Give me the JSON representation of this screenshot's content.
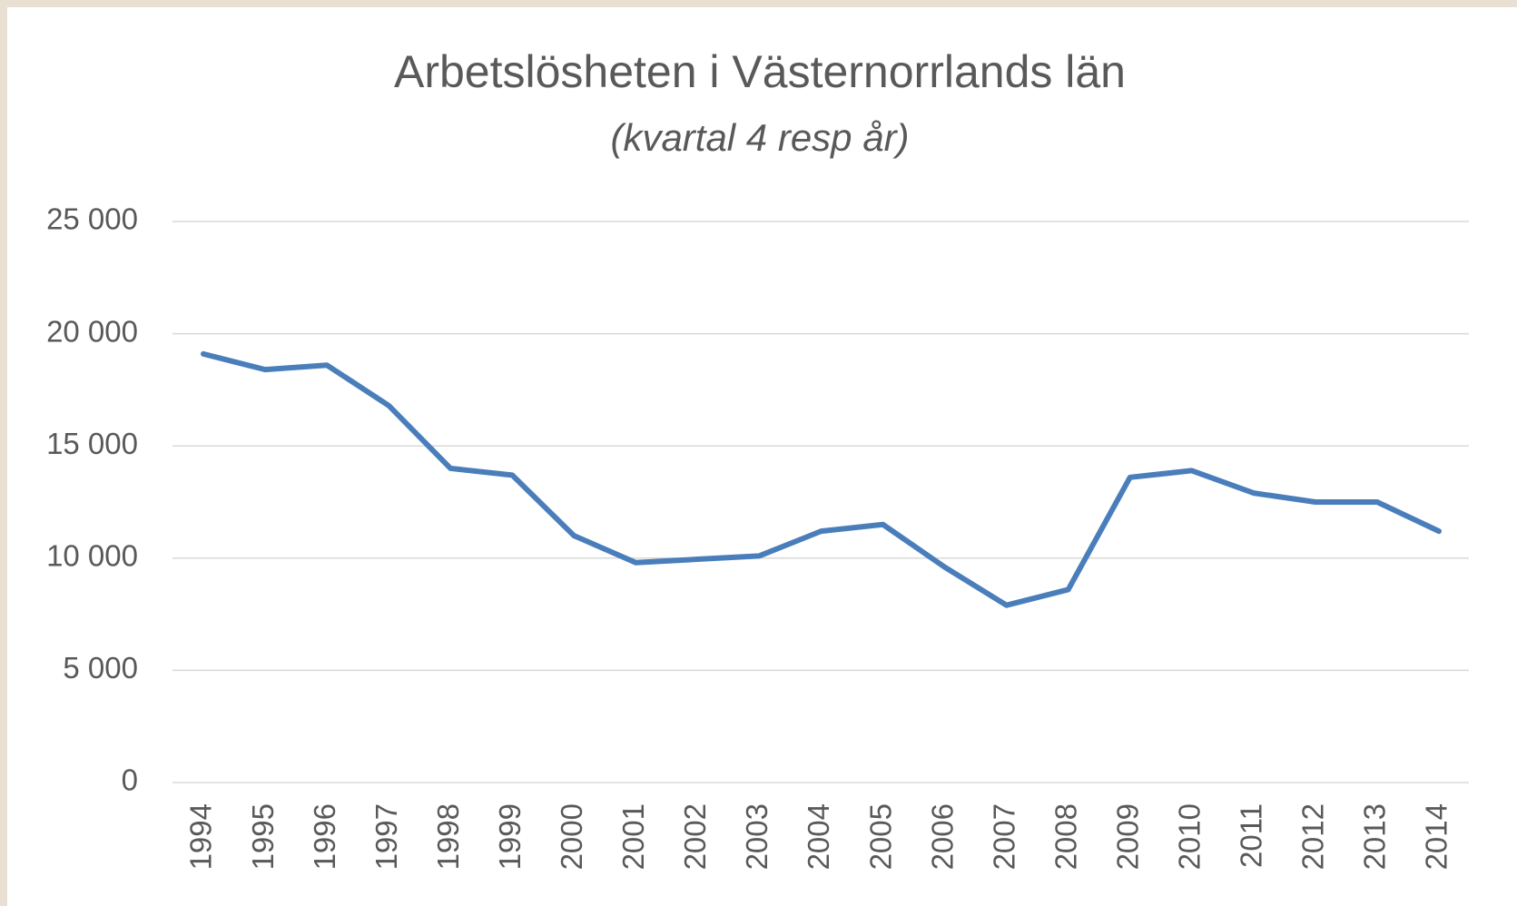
{
  "chart_data": {
    "type": "line",
    "title": "Arbetslösheten i Västernorrlands län",
    "subtitle": "(kvartal 4 resp år)",
    "categories": [
      "1994",
      "1995",
      "1996",
      "1997",
      "1998",
      "1999",
      "2000",
      "2001",
      "2002",
      "2003",
      "2004",
      "2005",
      "2006",
      "2007",
      "2008",
      "2009",
      "2010",
      "2011",
      "2012",
      "2013",
      "2014"
    ],
    "series": [
      {
        "color": "#4a7ebb",
        "values": [
          19100,
          18400,
          18600,
          16800,
          14000,
          13700,
          11000,
          9800,
          9950,
          10100,
          11200,
          11500,
          9600,
          7900,
          8600,
          13600,
          13900,
          12900,
          12500,
          12500,
          11200
        ]
      }
    ],
    "ylim": [
      0,
      25000
    ],
    "yticks": [
      0,
      {
        "value": 5000,
        "label": "5 000"
      },
      {
        "value": 10000,
        "label": "10 000"
      },
      {
        "value": 15000,
        "label": "15 000"
      },
      {
        "value": 20000,
        "label": "20 000"
      },
      {
        "value": 25000,
        "label": "25 000"
      }
    ],
    "grid": true
  }
}
